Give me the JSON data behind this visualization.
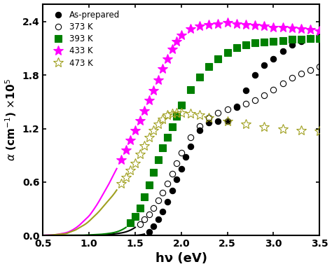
{
  "xlabel": "hν (eV)",
  "xlim": [
    0.5,
    3.5
  ],
  "ylim": [
    0.0,
    2.6
  ],
  "yticks": [
    0.0,
    0.6,
    1.2,
    1.8,
    2.4
  ],
  "xticks": [
    0.5,
    1.0,
    1.5,
    2.0,
    2.5,
    3.0,
    3.5
  ],
  "legend": [
    "As-prepared",
    "373 K",
    "393 K",
    "433 K",
    "473 K"
  ],
  "series": {
    "as_prepared": {
      "line_x": [
        0.5,
        0.6,
        0.7,
        0.8,
        0.9,
        1.0,
        1.1,
        1.2,
        1.3,
        1.4,
        1.5,
        1.55,
        1.6
      ],
      "line_y": [
        0.0,
        0.0,
        0.0,
        0.0,
        0.0,
        0.0,
        0.0,
        0.0,
        0.0,
        0.0,
        0.0,
        0.005,
        0.015
      ],
      "scatter_x": [
        1.65,
        1.7,
        1.75,
        1.8,
        1.85,
        1.9,
        1.95,
        2.0,
        2.05,
        2.1,
        2.2,
        2.3,
        2.4,
        2.5,
        2.6,
        2.7,
        2.8,
        2.9,
        3.0,
        3.1,
        3.2,
        3.3,
        3.4,
        3.5
      ],
      "scatter_y": [
        0.04,
        0.1,
        0.18,
        0.27,
        0.38,
        0.5,
        0.63,
        0.75,
        0.88,
        1.0,
        1.18,
        1.27,
        1.28,
        1.28,
        1.44,
        1.63,
        1.8,
        1.91,
        1.98,
        2.07,
        2.14,
        2.18,
        2.22,
        2.24
      ],
      "color": "black",
      "marker": "o",
      "mfc": "black",
      "ms": 6
    },
    "373K": {
      "line_x": [
        0.5,
        0.6,
        0.7,
        0.8,
        0.9,
        1.0,
        1.1,
        1.2,
        1.3,
        1.4,
        1.45,
        1.5
      ],
      "line_y": [
        0.0,
        0.0,
        0.0,
        0.0,
        0.0,
        0.0,
        0.005,
        0.01,
        0.02,
        0.04,
        0.06,
        0.09
      ],
      "scatter_x": [
        1.55,
        1.6,
        1.65,
        1.7,
        1.75,
        1.8,
        1.85,
        1.9,
        1.95,
        2.0,
        2.1,
        2.2,
        2.3,
        2.4,
        2.5,
        2.6,
        2.7,
        2.8,
        2.9,
        3.0,
        3.1,
        3.2,
        3.3,
        3.4,
        3.5
      ],
      "scatter_y": [
        0.13,
        0.18,
        0.24,
        0.31,
        0.39,
        0.48,
        0.58,
        0.69,
        0.81,
        0.93,
        1.1,
        1.23,
        1.32,
        1.38,
        1.42,
        1.45,
        1.48,
        1.52,
        1.57,
        1.64,
        1.71,
        1.77,
        1.82,
        1.86,
        1.9
      ],
      "color": "black",
      "marker": "o",
      "mfc": "none",
      "ms": 6
    },
    "393K": {
      "line_x": [
        0.5,
        0.6,
        0.7,
        0.8,
        0.9,
        1.0,
        1.1,
        1.2,
        1.3,
        1.35,
        1.4
      ],
      "line_y": [
        0.0,
        0.0,
        0.0,
        0.0,
        0.0,
        0.005,
        0.01,
        0.02,
        0.04,
        0.06,
        0.09
      ],
      "scatter_x": [
        1.45,
        1.5,
        1.55,
        1.6,
        1.65,
        1.7,
        1.75,
        1.8,
        1.85,
        1.9,
        1.95,
        2.0,
        2.1,
        2.2,
        2.3,
        2.4,
        2.5,
        2.6,
        2.7,
        2.8,
        2.9,
        3.0,
        3.1,
        3.2,
        3.3,
        3.4,
        3.5
      ],
      "scatter_y": [
        0.14,
        0.21,
        0.31,
        0.43,
        0.57,
        0.71,
        0.85,
        0.98,
        1.1,
        1.22,
        1.34,
        1.46,
        1.64,
        1.78,
        1.9,
        1.98,
        2.05,
        2.11,
        2.14,
        2.16,
        2.17,
        2.18,
        2.19,
        2.2,
        2.2,
        2.21,
        2.21
      ],
      "color": "green",
      "marker": "s",
      "mfc": "green",
      "ms": 7
    },
    "433K": {
      "line_x": [
        0.5,
        0.6,
        0.65,
        0.7,
        0.75,
        0.8,
        0.85,
        0.9,
        0.95,
        1.0,
        1.05,
        1.1,
        1.15,
        1.2,
        1.25,
        1.3
      ],
      "line_y": [
        0.0,
        0.005,
        0.01,
        0.02,
        0.03,
        0.05,
        0.08,
        0.12,
        0.17,
        0.22,
        0.29,
        0.37,
        0.46,
        0.55,
        0.65,
        0.75
      ],
      "scatter_x": [
        1.35,
        1.4,
        1.45,
        1.5,
        1.55,
        1.6,
        1.65,
        1.7,
        1.75,
        1.8,
        1.85,
        1.9,
        1.95,
        2.0,
        2.1,
        2.2,
        2.3,
        2.4,
        2.5,
        2.6,
        2.7,
        2.8,
        2.9,
        3.0,
        3.1,
        3.2,
        3.3,
        3.4,
        3.5
      ],
      "scatter_y": [
        0.85,
        0.96,
        1.07,
        1.18,
        1.29,
        1.4,
        1.52,
        1.63,
        1.75,
        1.87,
        1.98,
        2.09,
        2.18,
        2.25,
        2.32,
        2.35,
        2.37,
        2.38,
        2.39,
        2.38,
        2.37,
        2.36,
        2.35,
        2.34,
        2.34,
        2.33,
        2.32,
        2.31,
        2.3
      ],
      "color": "magenta",
      "marker": "*",
      "mfc": "magenta",
      "ms": 10
    },
    "473K": {
      "line_x": [
        0.5,
        0.6,
        0.65,
        0.7,
        0.75,
        0.8,
        0.85,
        0.9,
        0.95,
        1.0,
        1.05,
        1.1,
        1.15,
        1.2,
        1.25,
        1.3
      ],
      "line_y": [
        0.0,
        0.005,
        0.01,
        0.015,
        0.02,
        0.04,
        0.06,
        0.09,
        0.12,
        0.16,
        0.21,
        0.26,
        0.32,
        0.38,
        0.44,
        0.51
      ],
      "scatter_x": [
        1.35,
        1.4,
        1.45,
        1.5,
        1.55,
        1.6,
        1.65,
        1.7,
        1.75,
        1.8,
        1.85,
        1.9,
        1.95,
        2.0,
        2.1,
        2.2,
        2.3,
        2.5,
        2.7,
        2.9,
        3.1,
        3.3,
        3.5
      ],
      "scatter_y": [
        0.58,
        0.65,
        0.73,
        0.81,
        0.91,
        1.01,
        1.1,
        1.18,
        1.25,
        1.31,
        1.35,
        1.37,
        1.38,
        1.38,
        1.37,
        1.35,
        1.32,
        1.28,
        1.25,
        1.22,
        1.2,
        1.18,
        1.17
      ],
      "color": "#a0a020",
      "marker": "*",
      "mfc": "none",
      "ms": 10
    }
  }
}
